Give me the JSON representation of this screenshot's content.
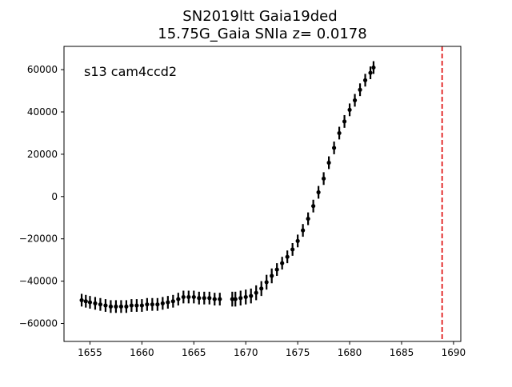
{
  "chart_data": {
    "type": "scatter",
    "title_line1": "SN2019ltt  Gaia19ded",
    "title_line2": "15.75G_Gaia SNIa z= 0.0178",
    "annotation": "s13 cam4ccd2",
    "xlabel": "",
    "ylabel": "",
    "xlim": [
      1652.5,
      1690.7
    ],
    "ylim": [
      -68500,
      71000
    ],
    "xticks": [
      1655,
      1660,
      1665,
      1670,
      1675,
      1680,
      1685,
      1690
    ],
    "yticks": [
      -60000,
      -40000,
      -20000,
      0,
      20000,
      40000,
      60000
    ],
    "grid": false,
    "vline": {
      "x": 1688.9,
      "color": "#dd0000",
      "style": "dashed"
    },
    "series": [
      {
        "color": "#000000",
        "marker": "errorbar-point",
        "x": [
          1654.2,
          1654.6,
          1655.0,
          1655.5,
          1656.0,
          1656.5,
          1657.0,
          1657.5,
          1658.0,
          1658.5,
          1659.0,
          1659.5,
          1660.0,
          1660.5,
          1661.0,
          1661.5,
          1662.0,
          1662.5,
          1663.0,
          1663.5,
          1664.0,
          1664.5,
          1665.0,
          1665.5,
          1666.0,
          1666.5,
          1667.0,
          1667.5,
          1668.7,
          1669.0,
          1669.5,
          1670.0,
          1670.5,
          1671.0,
          1671.5,
          1672.0,
          1672.5,
          1673.0,
          1673.5,
          1674.0,
          1674.5,
          1675.0,
          1675.5,
          1676.0,
          1676.5,
          1677.0,
          1677.5,
          1678.0,
          1678.5,
          1679.0,
          1679.5,
          1680.0,
          1680.5,
          1681.0,
          1681.5,
          1682.0,
          1682.3
        ],
        "y": [
          -49000,
          -49500,
          -50000,
          -50500,
          -51000,
          -51500,
          -52000,
          -52000,
          -52000,
          -52000,
          -51500,
          -51500,
          -51500,
          -51000,
          -51000,
          -51000,
          -50500,
          -50000,
          -49500,
          -48500,
          -47500,
          -47500,
          -47500,
          -48000,
          -48000,
          -48000,
          -48500,
          -48500,
          -48500,
          -48500,
          -48000,
          -47500,
          -47000,
          -45500,
          -43500,
          -40500,
          -37500,
          -34500,
          -31500,
          -28500,
          -25000,
          -21000,
          -16000,
          -10500,
          -4500,
          2000,
          8500,
          16000,
          23000,
          30000,
          35500,
          41000,
          45500,
          50500,
          55000,
          58500,
          61000
        ],
        "spread": [
          3000,
          3000,
          3000,
          3000,
          3000,
          3000,
          3000,
          3000,
          3000,
          3000,
          3000,
          3000,
          3000,
          3000,
          3000,
          3000,
          3000,
          3000,
          3000,
          3000,
          3000,
          3000,
          3000,
          3000,
          3000,
          3000,
          3000,
          3000,
          3500,
          3500,
          3500,
          3500,
          3500,
          3500,
          3500,
          3500,
          3500,
          3000,
          3000,
          3000,
          3000,
          3000,
          3000,
          3000,
          3000,
          3000,
          3000,
          3000,
          3000,
          3000,
          3000,
          3000,
          3000,
          3000,
          3000,
          3000,
          3000
        ]
      }
    ]
  }
}
